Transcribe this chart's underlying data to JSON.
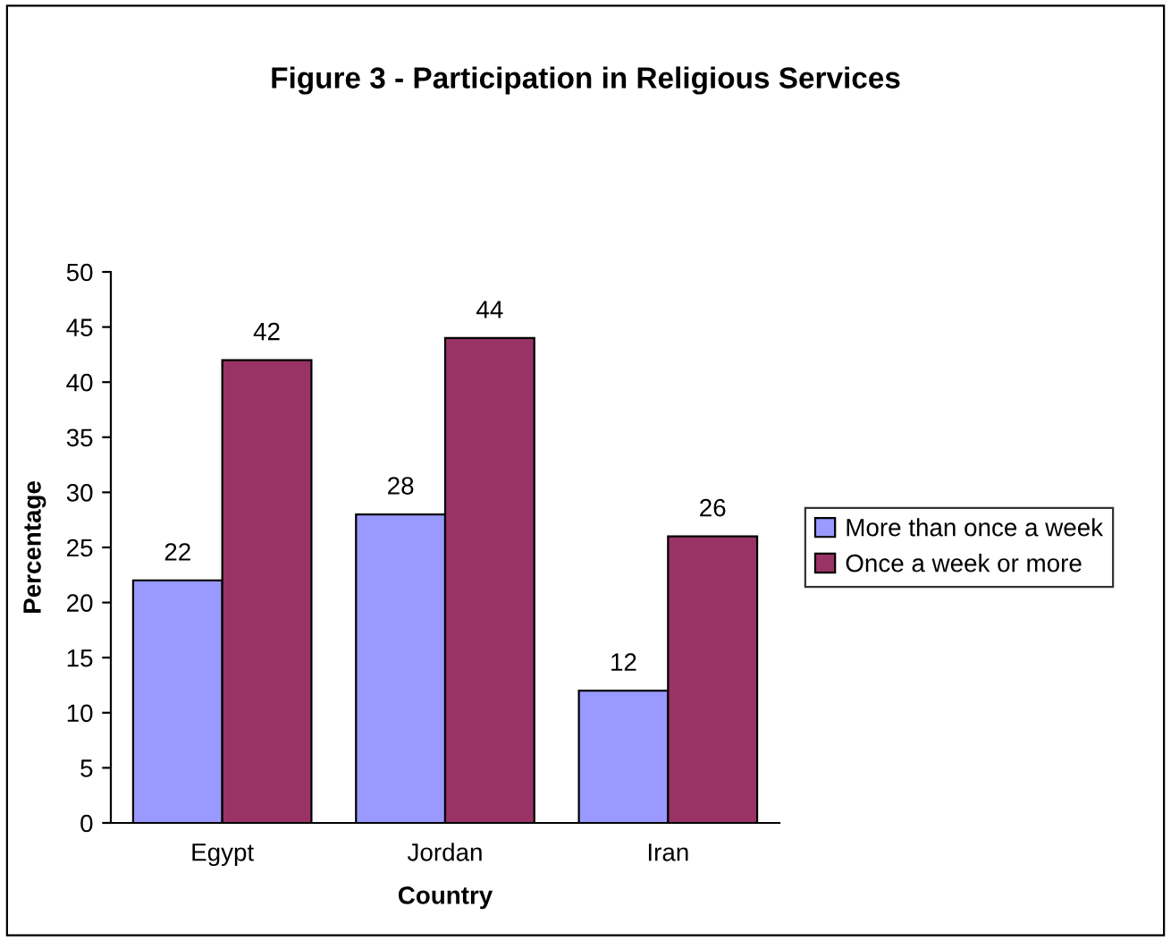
{
  "chart_data": {
    "type": "bar",
    "title": "Figure 3 - Participation in Religious Services",
    "xlabel": "Country",
    "ylabel": "Percentage",
    "categories": [
      "Egypt",
      "Jordan",
      "Iran"
    ],
    "series": [
      {
        "name": "More than once a week",
        "color": "#9999ff",
        "values": [
          22,
          28,
          12
        ]
      },
      {
        "name": "Once a week or more",
        "color": "#993366",
        "values": [
          42,
          44,
          26
        ]
      }
    ],
    "ylim": [
      0,
      50
    ],
    "yticks": [
      0,
      5,
      10,
      15,
      20,
      25,
      30,
      35,
      40,
      45,
      50
    ],
    "grid": false,
    "legend": "right",
    "data_labels": true
  }
}
